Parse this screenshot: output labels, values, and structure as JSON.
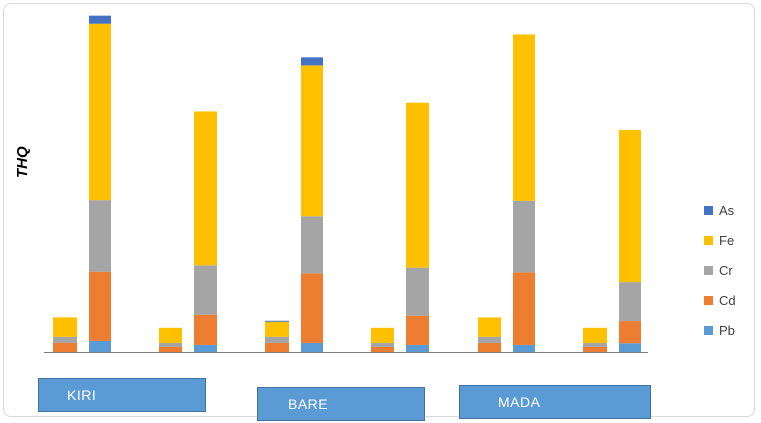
{
  "chart_data": {
    "type": "bar",
    "stacked": true,
    "ylabel": "THQ",
    "xlabel": "",
    "ylim": [
      0,
      1.0
    ],
    "grid": false,
    "legend_position": "right",
    "series": [
      {
        "name": "Pb",
        "color": "#5b9bd5",
        "values": [
          0.0,
          0.033,
          0.0,
          0.021,
          0.0,
          0.027,
          0.0,
          0.021,
          0.0,
          0.021,
          0.0,
          0.026
        ]
      },
      {
        "name": "Cd",
        "color": "#ed7d31",
        "values": [
          0.027,
          0.206,
          0.015,
          0.09,
          0.027,
          0.207,
          0.015,
          0.087,
          0.027,
          0.216,
          0.015,
          0.066
        ]
      },
      {
        "name": "Cr",
        "color": "#a5a5a5",
        "values": [
          0.018,
          0.213,
          0.012,
          0.147,
          0.018,
          0.17,
          0.012,
          0.143,
          0.018,
          0.213,
          0.012,
          0.116
        ]
      },
      {
        "name": "Fe",
        "color": "#ffc000",
        "values": [
          0.058,
          0.525,
          0.045,
          0.458,
          0.045,
          0.449,
          0.045,
          0.491,
          0.058,
          0.495,
          0.045,
          0.453
        ]
      },
      {
        "name": "As",
        "color": "#4472c4",
        "values": [
          0.0,
          0.024,
          0.0,
          0.0,
          0.003,
          0.024,
          0.0,
          0.0,
          0.0,
          0.0,
          0.0,
          0.0
        ]
      }
    ],
    "groups": [
      {
        "label": "KIRI"
      },
      {
        "label": "BARE"
      },
      {
        "label": "MADA"
      }
    ]
  }
}
